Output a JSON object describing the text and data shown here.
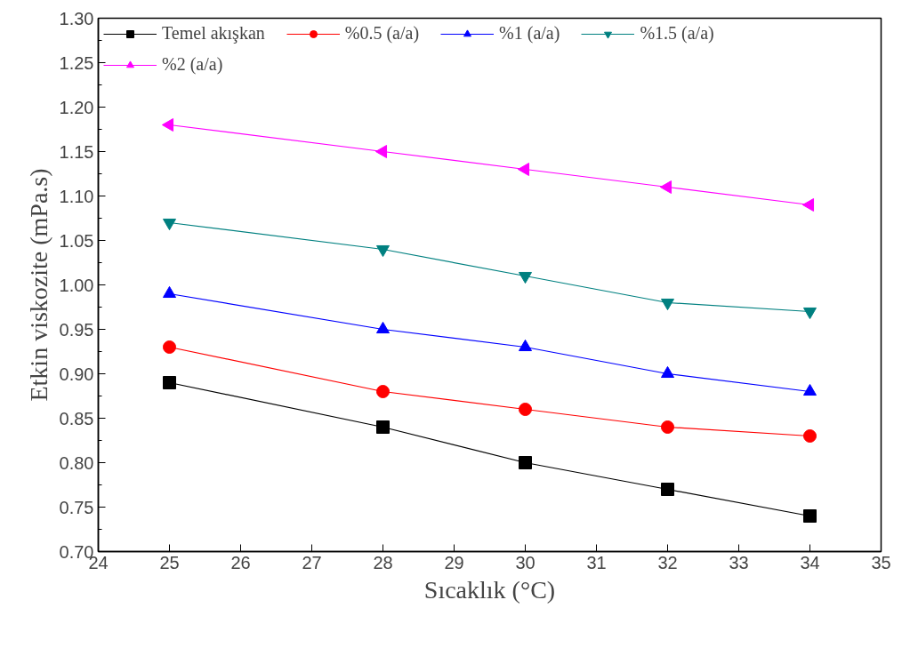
{
  "chart_data": {
    "type": "line",
    "xlabel": "Sıcaklık (°C)",
    "ylabel": "Etkin viskozite (mPa.s)",
    "x": [
      25,
      28,
      30,
      32,
      34
    ],
    "series": [
      {
        "name": "Temel akışkan",
        "color": "#000000",
        "marker": "square",
        "values": [
          0.89,
          0.84,
          0.8,
          0.77,
          0.74
        ]
      },
      {
        "name": "%0.5 (a/a)",
        "color": "#ff0000",
        "marker": "circle",
        "values": [
          0.93,
          0.88,
          0.86,
          0.84,
          0.83
        ]
      },
      {
        "name": "%1 (a/a)",
        "color": "#0000ff",
        "marker": "triangle",
        "values": [
          0.99,
          0.95,
          0.93,
          0.9,
          0.88
        ]
      },
      {
        "name": "%1.5 (a/a)",
        "color": "#008080",
        "marker": "triangle_down",
        "values": [
          1.07,
          1.04,
          1.01,
          0.98,
          0.97
        ]
      },
      {
        "name": "%2 (a/a)",
        "color": "#ff00ff",
        "marker": "triangle_left",
        "values": [
          1.18,
          1.15,
          1.13,
          1.11,
          1.09
        ]
      }
    ],
    "xlim": [
      24,
      35
    ],
    "xticks": [
      24,
      25,
      26,
      27,
      28,
      29,
      30,
      31,
      32,
      33,
      34,
      35
    ],
    "ylim": [
      0.7,
      1.3
    ],
    "yticks": [
      {
        "value": 0.7,
        "label": "0.70"
      },
      0.75,
      {
        "value": 0.8,
        "label": "0.80"
      },
      0.85,
      {
        "value": 0.9,
        "label": "0.90"
      },
      0.95,
      {
        "value": 1.0,
        "label": "1.00"
      },
      1.05,
      {
        "value": 1.1,
        "label": "1.10"
      },
      1.15,
      {
        "value": 1.2,
        "label": "1.20"
      },
      1.25,
      {
        "value": 1.3,
        "label": "1.30"
      }
    ],
    "grid": false,
    "legend": "top left",
    "line_style": "solid"
  }
}
